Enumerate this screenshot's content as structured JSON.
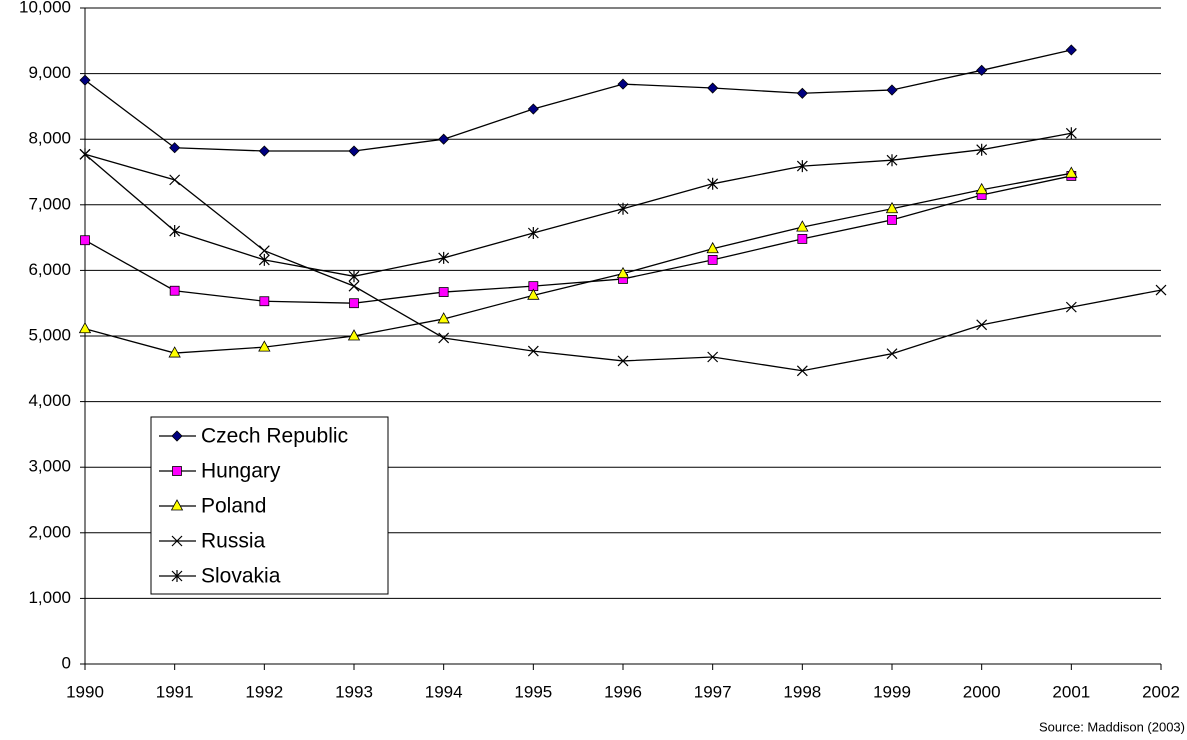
{
  "chart_data": {
    "type": "line",
    "x": [
      1990,
      1991,
      1992,
      1993,
      1994,
      1995,
      1996,
      1997,
      1998,
      1999,
      2000,
      2001,
      2002
    ],
    "xlim": [
      1990,
      2002
    ],
    "xticks": [
      1990,
      1991,
      1992,
      1993,
      1994,
      1995,
      1996,
      1997,
      1998,
      1999,
      2000,
      2001,
      2002
    ],
    "ylim": [
      0,
      10000
    ],
    "yticks": [
      0,
      {
        "value": 1000,
        "label": "1,000"
      },
      {
        "value": 2000,
        "label": "2,000"
      },
      {
        "value": 3000,
        "label": "3,000"
      },
      {
        "value": 4000,
        "label": "4,000"
      },
      {
        "value": 5000,
        "label": "5,000"
      },
      {
        "value": 6000,
        "label": "6,000"
      },
      {
        "value": 7000,
        "label": "7,000"
      },
      {
        "value": 8000,
        "label": "8,000"
      },
      {
        "value": 9000,
        "label": "9,000"
      },
      {
        "value": 10000,
        "label": "10,000"
      }
    ],
    "grid": true,
    "legend": "lower left",
    "annotation": "Source: Maddison (2003)",
    "series": [
      {
        "name": "Czech Republic",
        "color": "#000080",
        "marker": "diamond",
        "values": [
          8900,
          7870,
          7820,
          7820,
          8000,
          8460,
          8840,
          8780,
          8700,
          8750,
          9050,
          9360,
          null
        ]
      },
      {
        "name": "Hungary",
        "color": "#ff00ff",
        "marker": "square",
        "values": [
          6460,
          5690,
          5530,
          5500,
          5670,
          5760,
          5870,
          6160,
          6480,
          6770,
          7150,
          7440,
          null
        ]
      },
      {
        "name": "Poland",
        "color": "#ffff00",
        "marker": "triangle",
        "values": [
          5110,
          4740,
          4830,
          5000,
          5260,
          5620,
          5950,
          6330,
          6660,
          6940,
          7230,
          7480,
          null
        ]
      },
      {
        "name": "Russia",
        "color": "#000000",
        "marker": "x",
        "values": [
          7770,
          7380,
          6300,
          5760,
          4970,
          4770,
          4620,
          4680,
          4470,
          4730,
          5170,
          5440,
          5700
        ]
      },
      {
        "name": "Slovakia",
        "color": "#000000",
        "marker": "star",
        "values": [
          7770,
          6600,
          6160,
          5910,
          6190,
          6570,
          6940,
          7320,
          7590,
          7680,
          7840,
          8090,
          null
        ]
      }
    ]
  }
}
